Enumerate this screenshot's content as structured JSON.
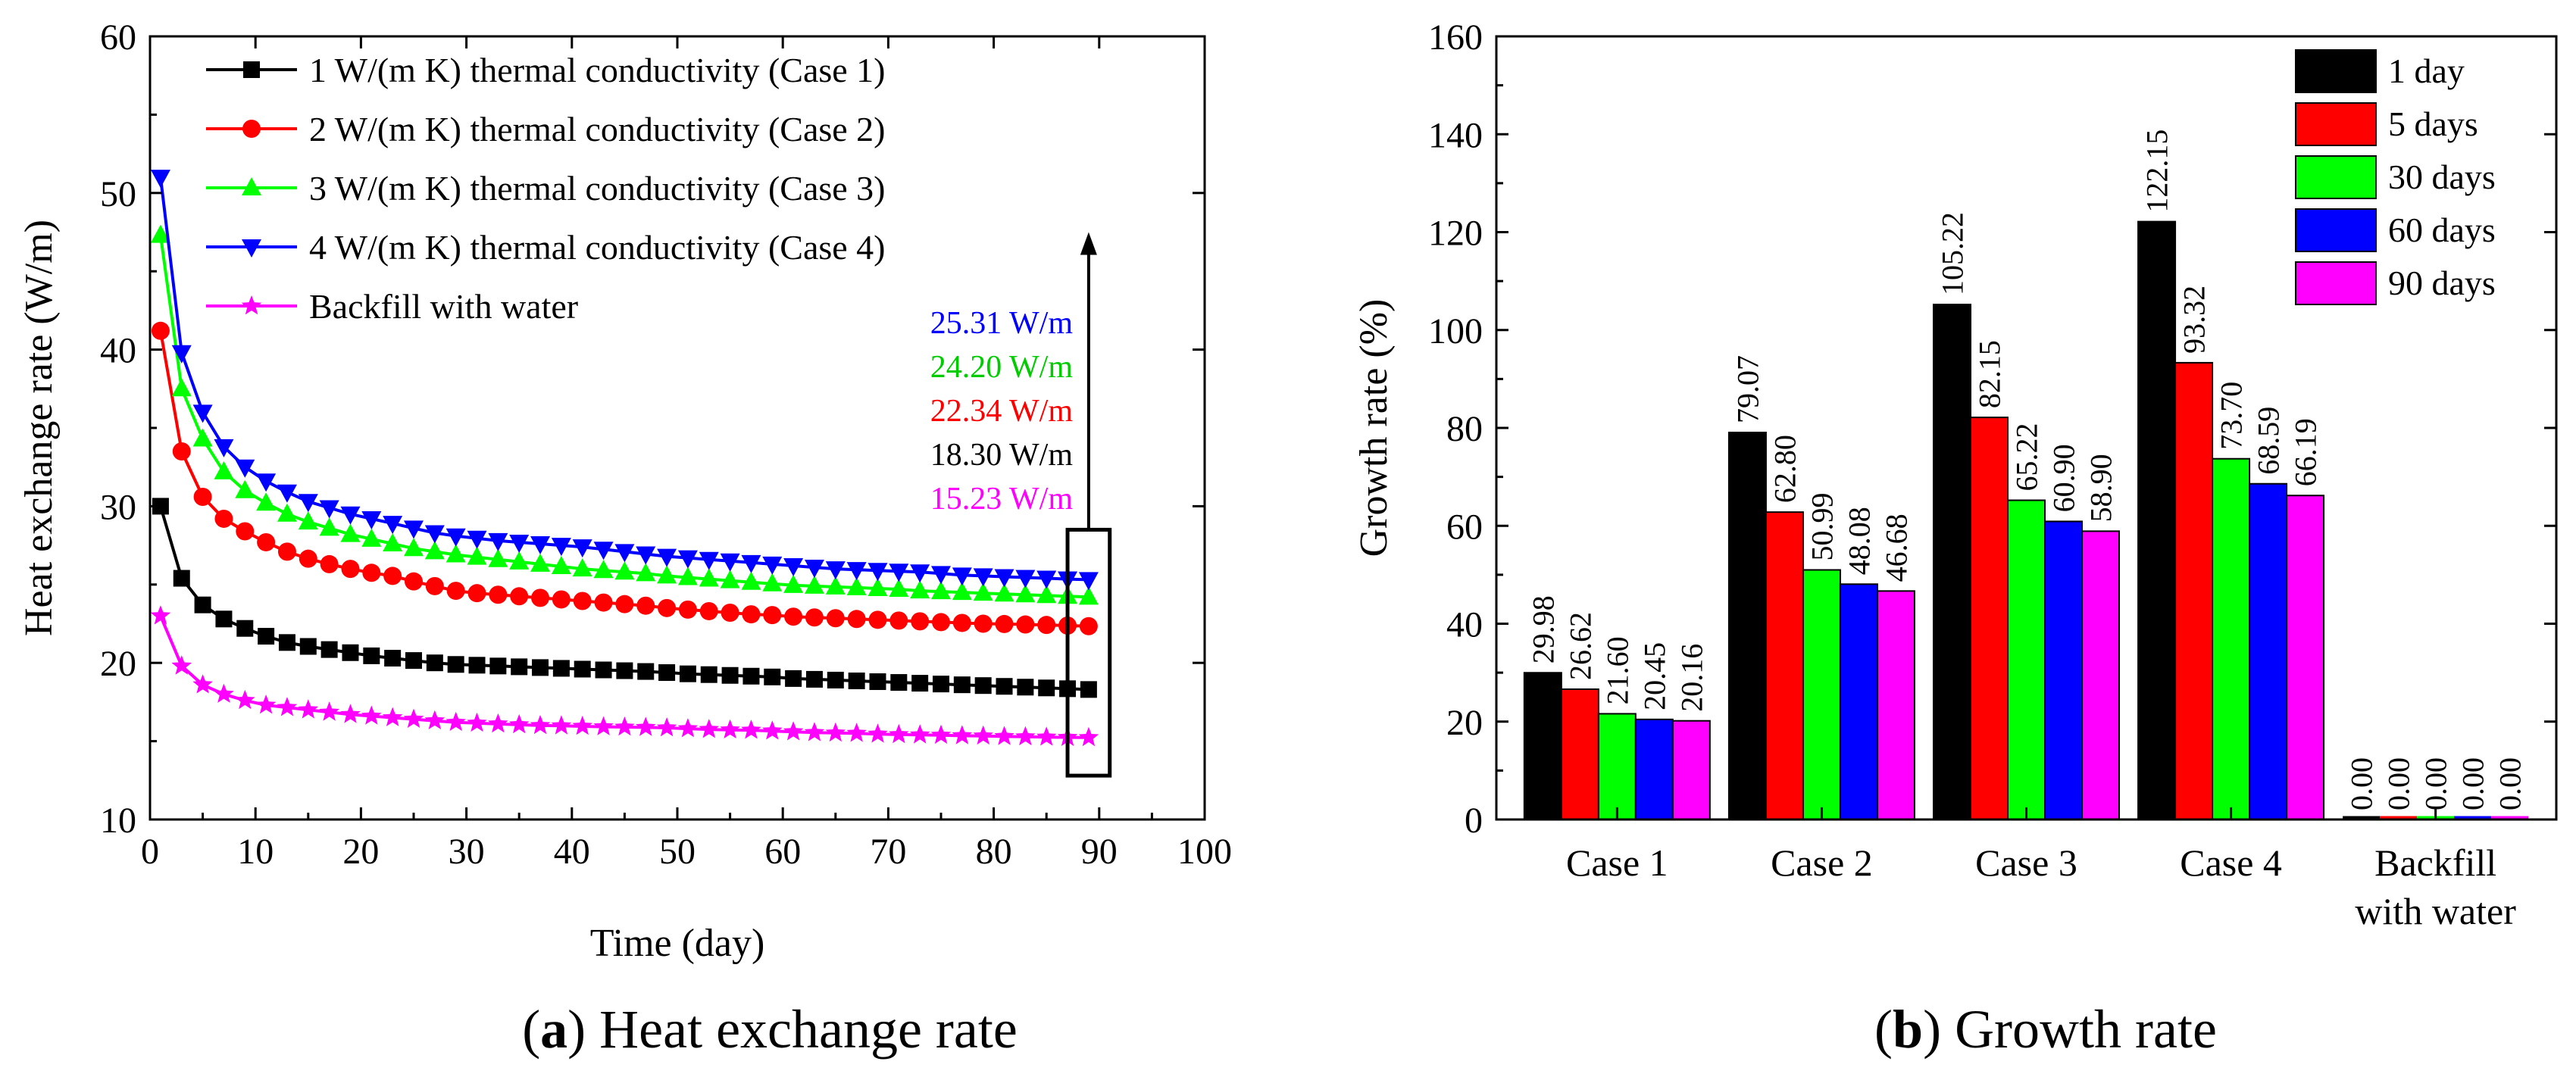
{
  "chart_data": [
    {
      "type": "line",
      "caption_letter": "a",
      "caption_text": " Heat exchange rate",
      "xlabel": "Time (day)",
      "ylabel": "Heat exchange rate (W/m)",
      "xlim": [
        0,
        100
      ],
      "ylim": [
        10,
        60
      ],
      "xticks": [
        0,
        10,
        20,
        30,
        40,
        50,
        60,
        70,
        80,
        90,
        100
      ],
      "yticks": [
        10,
        20,
        30,
        40,
        50,
        60
      ],
      "legend_position": "top-left",
      "x": [
        1,
        3,
        5,
        7,
        9,
        11,
        13,
        15,
        17,
        19,
        21,
        23,
        25,
        27,
        29,
        31,
        33,
        35,
        37,
        39,
        41,
        43,
        45,
        47,
        49,
        51,
        53,
        55,
        57,
        59,
        61,
        63,
        65,
        67,
        69,
        71,
        73,
        75,
        77,
        79,
        81,
        83,
        85,
        87,
        89
      ],
      "series": [
        {
          "name": "1 W/(m K) thermal conductivity (Case 1)",
          "color": "#000000",
          "marker": "square",
          "values": [
            30.0,
            25.4,
            23.7,
            22.8,
            22.2,
            21.7,
            21.3,
            21.05,
            20.85,
            20.65,
            20.45,
            20.3,
            20.15,
            20.0,
            19.9,
            19.85,
            19.8,
            19.75,
            19.7,
            19.65,
            19.6,
            19.55,
            19.5,
            19.45,
            19.38,
            19.3,
            19.25,
            19.2,
            19.15,
            19.1,
            19.0,
            18.95,
            18.9,
            18.85,
            18.8,
            18.75,
            18.7,
            18.65,
            18.6,
            18.55,
            18.5,
            18.45,
            18.4,
            18.35,
            18.3
          ]
        },
        {
          "name": "2 W/(m K) thermal conductivity (Case 2)",
          "color": "#ff0000",
          "marker": "circle",
          "values": [
            41.2,
            33.5,
            30.6,
            29.2,
            28.4,
            27.7,
            27.1,
            26.65,
            26.3,
            26.0,
            25.75,
            25.55,
            25.2,
            24.9,
            24.6,
            24.45,
            24.35,
            24.25,
            24.15,
            24.05,
            23.95,
            23.85,
            23.75,
            23.65,
            23.5,
            23.4,
            23.3,
            23.2,
            23.1,
            23.05,
            22.95,
            22.9,
            22.85,
            22.8,
            22.75,
            22.7,
            22.65,
            22.6,
            22.55,
            22.5,
            22.48,
            22.45,
            22.42,
            22.38,
            22.34
          ]
        },
        {
          "name": "3 W/(m K) thermal conductivity (Case 3)",
          "color": "#00ff00",
          "marker": "triangle-up",
          "values": [
            47.3,
            37.5,
            34.3,
            32.2,
            31.0,
            30.2,
            29.5,
            29.0,
            28.6,
            28.2,
            27.9,
            27.6,
            27.3,
            27.1,
            26.9,
            26.75,
            26.6,
            26.45,
            26.3,
            26.15,
            26.0,
            25.9,
            25.8,
            25.7,
            25.55,
            25.45,
            25.35,
            25.25,
            25.15,
            25.05,
            24.95,
            24.9,
            24.85,
            24.8,
            24.75,
            24.7,
            24.6,
            24.55,
            24.5,
            24.45,
            24.4,
            24.35,
            24.3,
            24.25,
            24.2
          ]
        },
        {
          "name": "4 W/(m K) thermal conductivity (Case 4)",
          "color": "#0000ff",
          "marker": "triangle-down",
          "values": [
            51.0,
            39.8,
            36.0,
            33.8,
            32.5,
            31.6,
            30.9,
            30.3,
            29.9,
            29.5,
            29.2,
            28.9,
            28.6,
            28.3,
            28.1,
            27.95,
            27.8,
            27.7,
            27.6,
            27.5,
            27.4,
            27.25,
            27.1,
            26.95,
            26.8,
            26.7,
            26.6,
            26.5,
            26.4,
            26.3,
            26.2,
            26.1,
            26.0,
            25.95,
            25.9,
            25.85,
            25.8,
            25.7,
            25.6,
            25.55,
            25.5,
            25.45,
            25.4,
            25.35,
            25.31
          ]
        },
        {
          "name": "Backfill with water",
          "color": "#ff00ff",
          "marker": "star",
          "values": [
            23.0,
            19.8,
            18.6,
            18.0,
            17.6,
            17.3,
            17.15,
            17.0,
            16.85,
            16.7,
            16.6,
            16.5,
            16.4,
            16.3,
            16.2,
            16.15,
            16.1,
            16.05,
            16.0,
            15.98,
            15.95,
            15.92,
            15.9,
            15.88,
            15.85,
            15.8,
            15.75,
            15.72,
            15.7,
            15.65,
            15.6,
            15.55,
            15.52,
            15.5,
            15.45,
            15.42,
            15.4,
            15.38,
            15.35,
            15.33,
            15.3,
            15.28,
            15.26,
            15.24,
            15.23
          ]
        }
      ],
      "annotations": [
        {
          "text": "25.31 W/m",
          "color": "#0000ff"
        },
        {
          "text": "24.20 W/m",
          "color": "#00cc00"
        },
        {
          "text": "22.34 W/m",
          "color": "#ff0000"
        },
        {
          "text": "18.30 W/m",
          "color": "#000000"
        },
        {
          "text": "15.23 W/m",
          "color": "#ff00ff"
        }
      ],
      "highlight_box": {
        "x_range": [
          87,
          91
        ],
        "y_range": [
          12.8,
          28.5
        ]
      },
      "arrow": {
        "x": 89,
        "from_y": 28.5,
        "to_y": 47.5
      }
    },
    {
      "type": "bar",
      "caption_letter": "b",
      "caption_text": " Growth rate",
      "xlabel": "",
      "ylabel": "Growth rate (%)",
      "ylim": [
        0,
        160
      ],
      "yticks": [
        0,
        20,
        40,
        60,
        80,
        100,
        120,
        140,
        160
      ],
      "legend_position": "top-right",
      "categories": [
        [
          "Case 1"
        ],
        [
          "Case 2"
        ],
        [
          "Case 3"
        ],
        [
          "Case 4"
        ],
        [
          "Backfill",
          "with water"
        ]
      ],
      "series": [
        {
          "name": "1 day",
          "color": "#000000",
          "values": [
            29.98,
            79.07,
            105.22,
            122.15,
            0.0
          ],
          "labels": [
            "29.98",
            "79.07",
            "105.22",
            "122.15",
            "0.00"
          ]
        },
        {
          "name": "5 days",
          "color": "#ff0000",
          "values": [
            26.62,
            62.8,
            82.15,
            93.32,
            0.0
          ],
          "labels": [
            "26.62",
            "62.80",
            "82.15",
            "93.32",
            "0.00"
          ]
        },
        {
          "name": "30 days",
          "color": "#00ff00",
          "values": [
            21.6,
            50.99,
            65.22,
            73.7,
            0.0
          ],
          "labels": [
            "21.60",
            "50.99",
            "65.22",
            "73.70",
            "0.00"
          ]
        },
        {
          "name": "60 days",
          "color": "#0000ff",
          "values": [
            20.45,
            48.08,
            60.9,
            68.59,
            0.0
          ],
          "labels": [
            "20.45",
            "48.08",
            "60.90",
            "68.59",
            "0.00"
          ]
        },
        {
          "name": "90 days",
          "color": "#ff00ff",
          "values": [
            20.16,
            46.68,
            58.9,
            66.19,
            0.0
          ],
          "labels": [
            "20.16",
            "46.68",
            "58.90",
            "66.19",
            "0.00"
          ]
        }
      ]
    }
  ]
}
